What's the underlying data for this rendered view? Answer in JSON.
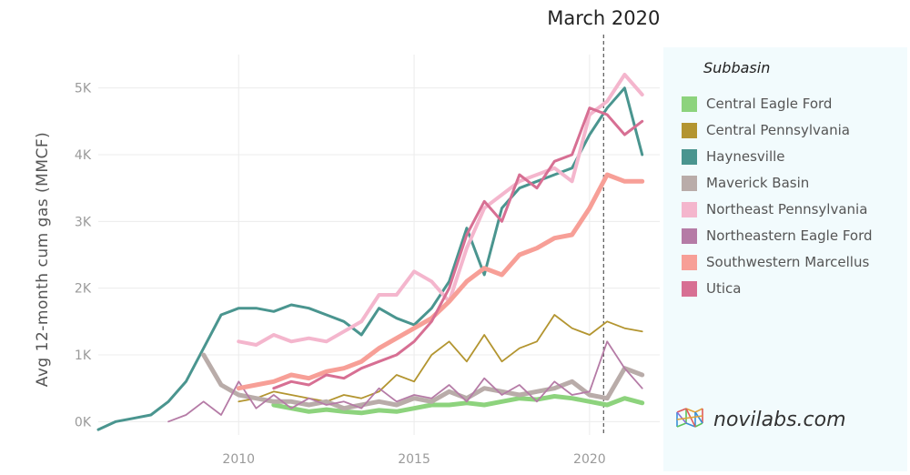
{
  "chart_data": {
    "type": "line",
    "title": "",
    "xlabel": "",
    "ylabel": "Avg 12-month cum gas (MMCF)",
    "xlim": [
      2006,
      2022
    ],
    "ylim": [
      -200,
      5500
    ],
    "x_ticks": [
      2010,
      2015,
      2020
    ],
    "y_ticks": [
      {
        "value": 0,
        "label": "0K"
      },
      {
        "value": 1000,
        "label": "1K"
      },
      {
        "value": 2000,
        "label": "2K"
      },
      {
        "value": 3000,
        "label": "3K"
      },
      {
        "value": 4000,
        "label": "4K"
      },
      {
        "value": 5000,
        "label": "5K"
      }
    ],
    "grid": true,
    "annotation": {
      "label": "March 2020",
      "x": 2020.4
    },
    "legend_title": "Subbasin",
    "legend_position": "right",
    "series": [
      {
        "name": "Central Eagle Ford",
        "color": "#8dd37d",
        "x": [
          2011.0,
          2011.5,
          2012.0,
          2012.5,
          2013.0,
          2013.5,
          2014.0,
          2014.5,
          2015.0,
          2015.5,
          2016.0,
          2016.5,
          2017.0,
          2017.5,
          2018.0,
          2018.5,
          2019.0,
          2019.5,
          2020.0,
          2020.5,
          2021.0,
          2021.5
        ],
        "y": [
          250,
          200,
          150,
          180,
          150,
          130,
          170,
          150,
          200,
          250,
          250,
          280,
          250,
          300,
          350,
          330,
          380,
          350,
          300,
          250,
          350,
          280
        ]
      },
      {
        "name": "Central Pennsylvania",
        "color": "#b39530",
        "x": [
          2010.0,
          2010.5,
          2011.0,
          2011.5,
          2012.0,
          2012.5,
          2013.0,
          2013.5,
          2014.0,
          2014.5,
          2015.0,
          2015.5,
          2016.0,
          2016.5,
          2017.0,
          2017.5,
          2018.0,
          2018.5,
          2019.0,
          2019.5,
          2020.0,
          2020.5,
          2021.0,
          2021.5
        ],
        "y": [
          300,
          350,
          450,
          400,
          350,
          300,
          400,
          350,
          450,
          700,
          600,
          1000,
          1200,
          900,
          1300,
          900,
          1100,
          1200,
          1600,
          1400,
          1300,
          1500,
          1400,
          1350
        ]
      },
      {
        "name": "Haynesville",
        "color": "#4a958f",
        "x": [
          2006.0,
          2006.5,
          2007.0,
          2007.5,
          2008.0,
          2008.5,
          2009.0,
          2009.5,
          2010.0,
          2010.5,
          2011.0,
          2011.5,
          2012.0,
          2012.5,
          2013.0,
          2013.5,
          2014.0,
          2014.5,
          2015.0,
          2015.5,
          2016.0,
          2016.5,
          2017.0,
          2017.5,
          2018.0,
          2018.5,
          2019.0,
          2019.5,
          2020.0,
          2020.5,
          2021.0,
          2021.5
        ],
        "y": [
          -120,
          0,
          50,
          100,
          300,
          600,
          1100,
          1600,
          1700,
          1700,
          1650,
          1750,
          1700,
          1600,
          1500,
          1300,
          1700,
          1550,
          1450,
          1700,
          2100,
          2900,
          2200,
          3200,
          3500,
          3600,
          3700,
          3800,
          4300,
          4700,
          5000,
          4000
        ]
      },
      {
        "name": "Maverick Basin",
        "color": "#b9aca9",
        "x": [
          2009.0,
          2009.5,
          2010.0,
          2010.5,
          2011.0,
          2011.5,
          2012.0,
          2012.5,
          2013.0,
          2013.5,
          2014.0,
          2014.5,
          2015.0,
          2015.5,
          2016.0,
          2016.5,
          2017.0,
          2017.5,
          2018.0,
          2018.5,
          2019.0,
          2019.5,
          2020.0,
          2020.5,
          2021.0,
          2021.5
        ],
        "y": [
          1000,
          550,
          400,
          350,
          300,
          300,
          250,
          300,
          200,
          250,
          300,
          250,
          350,
          300,
          450,
          350,
          500,
          450,
          400,
          450,
          500,
          600,
          400,
          350,
          800,
          700
        ]
      },
      {
        "name": "Northeast Pennsylvania",
        "color": "#f4b6cd",
        "x": [
          2010.0,
          2010.5,
          2011.0,
          2011.5,
          2012.0,
          2012.5,
          2013.0,
          2013.5,
          2014.0,
          2014.5,
          2015.0,
          2015.5,
          2016.0,
          2016.5,
          2017.0,
          2017.5,
          2018.0,
          2018.5,
          2019.0,
          2019.5,
          2020.0,
          2020.5,
          2021.0,
          2021.5
        ],
        "y": [
          1200,
          1150,
          1300,
          1200,
          1250,
          1200,
          1350,
          1500,
          1900,
          1900,
          2250,
          2100,
          1800,
          2600,
          3200,
          3400,
          3600,
          3700,
          3800,
          3600,
          4600,
          4800,
          5200,
          4900
        ]
      },
      {
        "name": "Northeastern Eagle Ford",
        "color": "#b57ba6",
        "x": [
          2008.0,
          2008.5,
          2009.0,
          2009.5,
          2010.0,
          2010.5,
          2011.0,
          2011.5,
          2012.0,
          2012.5,
          2013.0,
          2013.5,
          2014.0,
          2014.5,
          2015.0,
          2015.5,
          2016.0,
          2016.5,
          2017.0,
          2017.5,
          2018.0,
          2018.5,
          2019.0,
          2019.5,
          2020.0,
          2020.5,
          2021.0,
          2021.5
        ],
        "y": [
          0,
          100,
          300,
          100,
          600,
          200,
          400,
          200,
          350,
          250,
          300,
          200,
          500,
          300,
          400,
          350,
          550,
          300,
          650,
          400,
          550,
          300,
          600,
          400,
          450,
          1200,
          800,
          500
        ]
      },
      {
        "name": "Southwestern Marcellus",
        "color": "#f79f97",
        "x": [
          2010.0,
          2010.5,
          2011.0,
          2011.5,
          2012.0,
          2012.5,
          2013.0,
          2013.5,
          2014.0,
          2014.5,
          2015.0,
          2015.5,
          2016.0,
          2016.5,
          2017.0,
          2017.5,
          2018.0,
          2018.5,
          2019.0,
          2019.5,
          2020.0,
          2020.5,
          2021.0,
          2021.5
        ],
        "y": [
          500,
          550,
          600,
          700,
          650,
          750,
          800,
          900,
          1100,
          1250,
          1400,
          1550,
          1800,
          2100,
          2300,
          2200,
          2500,
          2600,
          2750,
          2800,
          3200,
          3700,
          3600,
          3600
        ]
      },
      {
        "name": "Utica",
        "color": "#d76f93",
        "x": [
          2011.0,
          2011.5,
          2012.0,
          2012.5,
          2013.0,
          2013.5,
          2014.0,
          2014.5,
          2015.0,
          2015.5,
          2016.0,
          2016.5,
          2017.0,
          2017.5,
          2018.0,
          2018.5,
          2019.0,
          2019.5,
          2020.0,
          2020.5,
          2021.0,
          2021.5
        ],
        "y": [
          500,
          600,
          550,
          700,
          650,
          800,
          900,
          1000,
          1200,
          1500,
          2000,
          2800,
          3300,
          3000,
          3700,
          3500,
          3900,
          4000,
          4700,
          4600,
          4300,
          4500
        ]
      }
    ]
  },
  "brand": {
    "text": "novilabs.com"
  }
}
